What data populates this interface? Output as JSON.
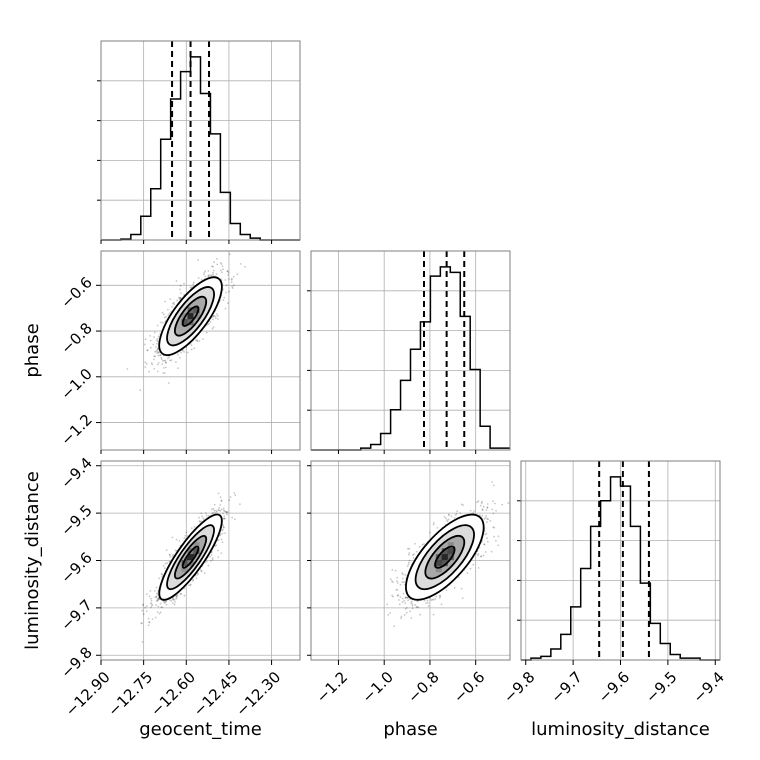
{
  "chart_data": {
    "type": "corner",
    "parameters": [
      "geocent_time",
      "phase",
      "luminosity_distance"
    ],
    "axes": {
      "geocent_time": {
        "label": "geocent_time",
        "range": [
          -12.9,
          -12.2
        ],
        "ticks": [
          -12.9,
          -12.75,
          -12.6,
          -12.45,
          -12.3
        ],
        "tick_labels": [
          "−12.90",
          "−12.75",
          "−12.60",
          "−12.45",
          "−12.30"
        ]
      },
      "phase": {
        "label": "phase",
        "range": [
          -1.32,
          -0.45
        ],
        "ticks": [
          -1.2,
          -1.0,
          -0.8,
          -0.6
        ],
        "tick_labels": [
          "−1.2",
          "−1.0",
          "−0.8",
          "−0.6"
        ]
      },
      "luminosity_distance": {
        "label": "luminosity_distance",
        "range": [
          -9.81,
          -9.39
        ],
        "ticks": [
          -9.8,
          -9.7,
          -9.6,
          -9.5,
          -9.4
        ],
        "tick_labels": [
          "−9.8",
          "−9.7",
          "−9.6",
          "−9.5",
          "−9.4"
        ]
      }
    },
    "histograms": {
      "geocent_time": {
        "bin_edges": [
          -12.9,
          -12.865,
          -12.83,
          -12.795,
          -12.76,
          -12.725,
          -12.69,
          -12.655,
          -12.62,
          -12.585,
          -12.55,
          -12.515,
          -12.48,
          -12.445,
          -12.41,
          -12.375,
          -12.34,
          -12.305,
          -12.27,
          -12.235,
          -12.2
        ],
        "counts": [
          0,
          0,
          0.5,
          3,
          13,
          28,
          55,
          77,
          92,
          100,
          80,
          58,
          26,
          9,
          3,
          1,
          0,
          0,
          0,
          0
        ],
        "quantiles": [
          -12.65,
          -12.585,
          -12.52
        ]
      },
      "phase": {
        "bin_edges": [
          -1.32,
          -1.2765,
          -1.233,
          -1.1895,
          -1.146,
          -1.1025,
          -1.059,
          -1.0155,
          -0.972,
          -0.9285,
          -0.885,
          -0.8415,
          -0.798,
          -0.7545,
          -0.711,
          -0.6675,
          -0.624,
          -0.5805,
          -0.537,
          -0.4935,
          -0.45
        ],
        "counts": [
          0,
          0,
          0,
          0,
          0,
          1,
          3,
          9,
          22,
          38,
          55,
          70,
          95,
          100,
          97,
          73,
          44,
          13,
          1,
          1
        ],
        "quantiles": [
          -0.826,
          -0.727,
          -0.65
        ]
      },
      "luminosity_distance": {
        "bin_edges": [
          -9.81,
          -9.789,
          -9.768,
          -9.747,
          -9.726,
          -9.705,
          -9.684,
          -9.663,
          -9.642,
          -9.621,
          -9.6,
          -9.579,
          -9.558,
          -9.537,
          -9.516,
          -9.495,
          -9.474,
          -9.453,
          -9.432,
          -9.411,
          -9.39
        ],
        "counts": [
          0,
          1,
          2,
          6,
          14,
          29,
          50,
          73,
          87,
          100,
          95,
          73,
          42,
          20,
          9,
          3,
          1,
          1,
          0,
          0
        ],
        "quantiles": [
          -9.645,
          -9.595,
          -9.54
        ]
      }
    },
    "scatter": {
      "phase_vs_geocent_time": {
        "x": "geocent_time",
        "y": "phase",
        "mean": [
          -12.585,
          -0.735
        ],
        "std": [
          0.055,
          0.085
        ],
        "corr": 0.75
      },
      "luminosity_distance_vs_geocent_time": {
        "x": "geocent_time",
        "y": "luminosity_distance",
        "mean": [
          -12.585,
          -9.593
        ],
        "std": [
          0.055,
          0.045
        ],
        "corr": 0.85
      },
      "luminosity_distance_vs_phase": {
        "x": "phase",
        "y": "luminosity_distance",
        "mean": [
          -0.735,
          -9.593
        ],
        "std": [
          0.085,
          0.045
        ],
        "corr": 0.7
      }
    },
    "grid": true,
    "contour_levels_sigma": [
      0.5,
      1.0,
      1.5,
      2.0
    ]
  }
}
